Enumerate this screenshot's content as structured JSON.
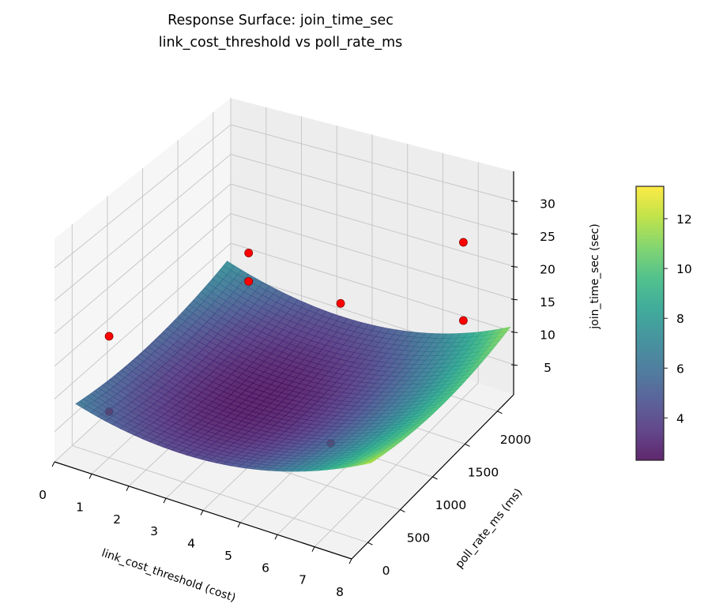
{
  "chart_data": {
    "type": "surface3d",
    "title": "Response Surface: join_time_sec",
    "subtitle": "link_cost_threshold vs poll_rate_ms",
    "xlabel": "link_cost_threshold (cost)",
    "ylabel": "poll_rate_ms (ms)",
    "zlabel": "join_time_sec (sec)",
    "xlim": [
      0,
      8
    ],
    "ylim": [
      -250,
      2250
    ],
    "zlim": [
      0.4,
      34.5
    ],
    "xticks": [
      0,
      1,
      2,
      3,
      4,
      5,
      6,
      7,
      8
    ],
    "yticks": [
      0,
      500,
      1000,
      1500,
      2000
    ],
    "zticks": [
      5,
      10,
      15,
      20,
      25,
      30
    ],
    "grid": true,
    "colormap": "viridis",
    "surface": {
      "x_range": [
        0,
        8
      ],
      "y_range": [
        50,
        2200
      ],
      "model": "z = 2.5 + 0.297*(x-3)^2 + 1.51e-6*(y-1100)^2 - 1.14e-4*(x-4)*(y-1100)",
      "coefficients": {
        "c": 2.5,
        "x0": 3,
        "y0": 1100,
        "a": 0.297,
        "b": 1.51e-06,
        "e": -0.000114
      }
    },
    "observed_points": [
      {
        "x": 1,
        "y": 0,
        "z": 19.1,
        "occluded": false
      },
      {
        "x": 1,
        "y": 0,
        "z": 7.5,
        "occluded": true
      },
      {
        "x": 1,
        "y": 2000,
        "z": 12.8,
        "occluded": false
      },
      {
        "x": 1,
        "y": 2000,
        "z": 8.1,
        "occluded": false
      },
      {
        "x": 5,
        "y": 1250,
        "z": 19.3,
        "occluded": false
      },
      {
        "x": 7.5,
        "y": 1750,
        "z": 27.9,
        "occluded": false
      },
      {
        "x": 7.5,
        "y": 1750,
        "z": 15.9,
        "occluded": false
      },
      {
        "x": 7,
        "y": 0,
        "z": 13.7,
        "occluded": true
      }
    ],
    "point_color": "#ff0000",
    "colorbar": {
      "range": [
        2.3,
        13.3
      ],
      "ticks": [
        4,
        6,
        8,
        10,
        12
      ]
    }
  }
}
